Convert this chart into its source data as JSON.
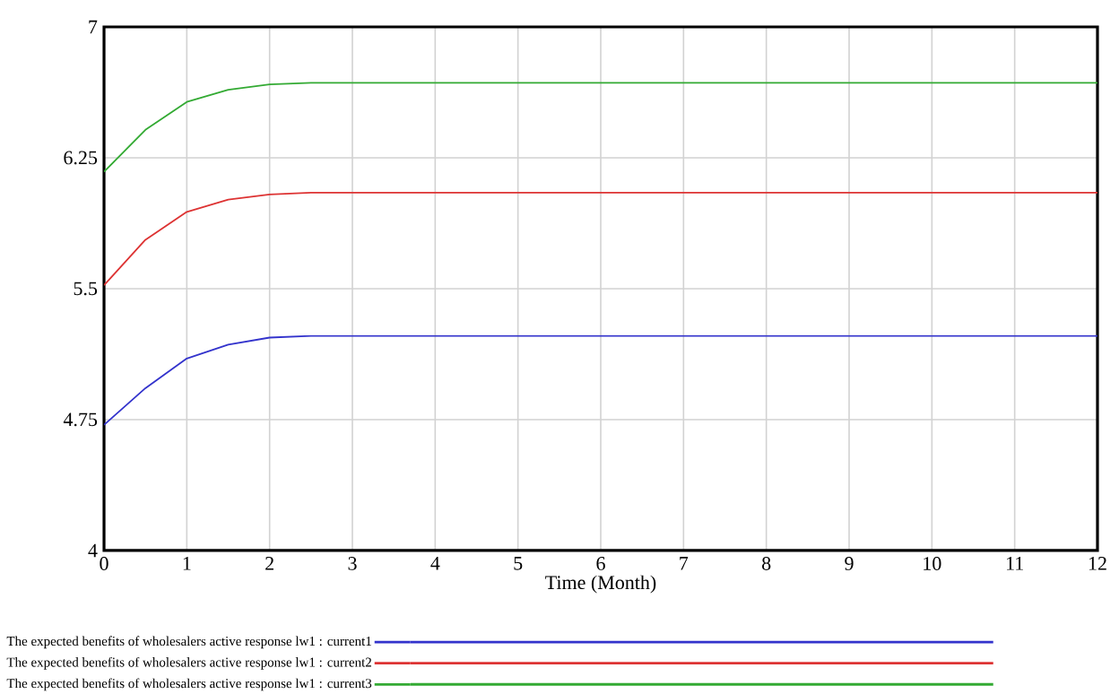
{
  "chart_data": {
    "type": "line",
    "xlabel": "Time (Month)",
    "xlim": [
      0,
      12
    ],
    "xticks": [
      0,
      1,
      2,
      3,
      4,
      5,
      6,
      7,
      8,
      9,
      10,
      11,
      12
    ],
    "ylim": [
      4,
      7
    ],
    "yticks": [
      4,
      4.75,
      5.5,
      6.25,
      7
    ],
    "grid": true,
    "legend": "bottom",
    "series": [
      {
        "name": "The expected benefits of wholesalers active response lw1 : current1",
        "color": "#3333cc",
        "x": [
          0,
          0.5,
          1,
          1.5,
          2,
          2.5,
          12
        ],
        "values": [
          4.72,
          4.93,
          5.1,
          5.18,
          5.22,
          5.23,
          5.23
        ]
      },
      {
        "name": "The expected benefits of wholesalers active response lw1 : current2",
        "color": "#dd3333",
        "x": [
          0,
          0.5,
          1,
          1.5,
          2,
          2.5,
          12
        ],
        "values": [
          5.52,
          5.78,
          5.94,
          6.01,
          6.04,
          6.05,
          6.05
        ]
      },
      {
        "name": "The expected benefits of wholesalers active response lw1 : current3",
        "color": "#33aa33",
        "x": [
          0,
          0.5,
          1,
          1.5,
          2,
          2.5,
          12
        ],
        "values": [
          6.17,
          6.41,
          6.57,
          6.64,
          6.67,
          6.68,
          6.68
        ]
      }
    ]
  }
}
